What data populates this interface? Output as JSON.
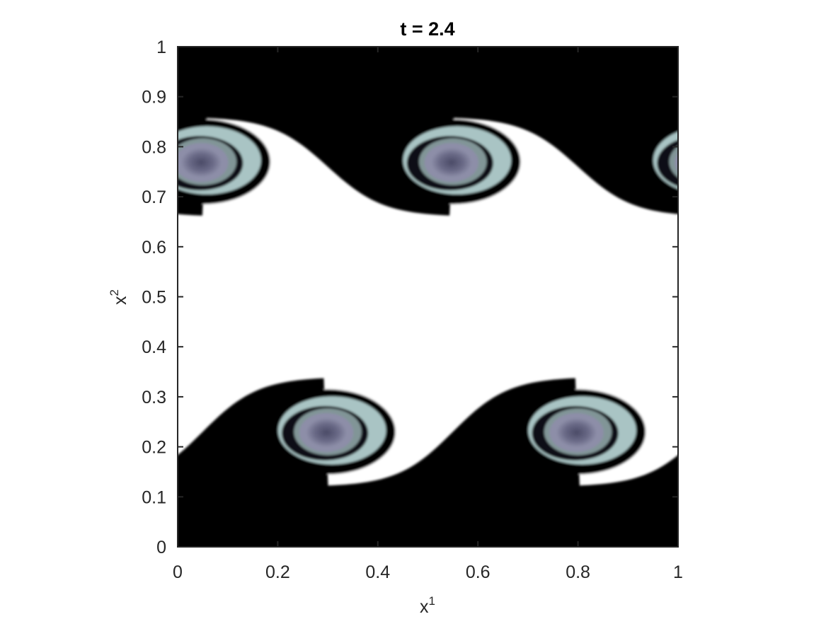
{
  "chart_data": {
    "type": "heatmap",
    "title": "t = 2.4",
    "xlabel": {
      "base": "x",
      "sup": "1"
    },
    "ylabel": {
      "base": "x",
      "sup": "2"
    },
    "xlim": [
      0,
      1
    ],
    "ylim": [
      0,
      1
    ],
    "xticks": [
      0,
      0.2,
      0.4,
      0.6,
      0.8,
      1
    ],
    "xtick_labels": [
      "0",
      "0.2",
      "0.4",
      "0.6",
      "0.8",
      "1"
    ],
    "yticks": [
      0,
      0.1,
      0.2,
      0.3,
      0.4,
      0.5,
      0.6,
      0.7,
      0.8,
      0.9,
      1
    ],
    "ytick_labels": [
      "0",
      "0.1",
      "0.2",
      "0.3",
      "0.4",
      "0.5",
      "0.6",
      "0.7",
      "0.8",
      "0.9",
      "1"
    ],
    "colormap": "bone",
    "colors": {
      "low": "#000000",
      "mid": "#6e6e8a",
      "ring": "#a9c4c4",
      "high": "#ffffff"
    },
    "field_description": "Kelvin-Helmholtz roll-up: dark fluid near x2<0.25 and x2>0.85, light fluid in middle band, with spiral vortices centered near x2~0.22 and x2~0.76",
    "vortices": [
      {
        "x": 0.3,
        "y": 0.23,
        "band": "lower"
      },
      {
        "x": 0.8,
        "y": 0.23,
        "band": "lower"
      },
      {
        "x": 0.05,
        "y": 0.77,
        "band": "upper"
      },
      {
        "x": 0.55,
        "y": 0.77,
        "band": "upper"
      },
      {
        "x": 1.05,
        "y": 0.77,
        "band": "upper"
      }
    ]
  }
}
